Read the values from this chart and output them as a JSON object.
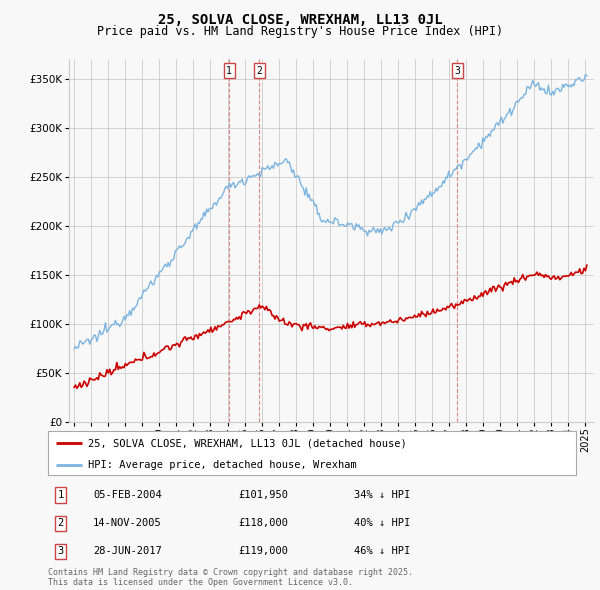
{
  "title": "25, SOLVA CLOSE, WREXHAM, LL13 0JL",
  "subtitle": "Price paid vs. HM Land Registry's House Price Index (HPI)",
  "title_fontsize": 10,
  "subtitle_fontsize": 8.5,
  "ytick_values": [
    0,
    50000,
    100000,
    150000,
    200000,
    250000,
    300000,
    350000
  ],
  "ylim": [
    0,
    370000
  ],
  "hpi_color": "#7cb4e0",
  "price_color": "#cc0000",
  "grid_color": "#cccccc",
  "background_color": "#f8f8f8",
  "sale1_date": "05-FEB-2004",
  "sale1_price": 101950,
  "sale1_hpi_pct": "34%",
  "sale2_date": "14-NOV-2005",
  "sale2_price": 118000,
  "sale2_hpi_pct": "40%",
  "sale3_date": "28-JUN-2017",
  "sale3_price": 119000,
  "sale3_hpi_pct": "46%",
  "footnote": "Contains HM Land Registry data © Crown copyright and database right 2025.\nThis data is licensed under the Open Government Licence v3.0.",
  "sale_vline_color": "#cc4444",
  "num_box_color": "#cc4444"
}
